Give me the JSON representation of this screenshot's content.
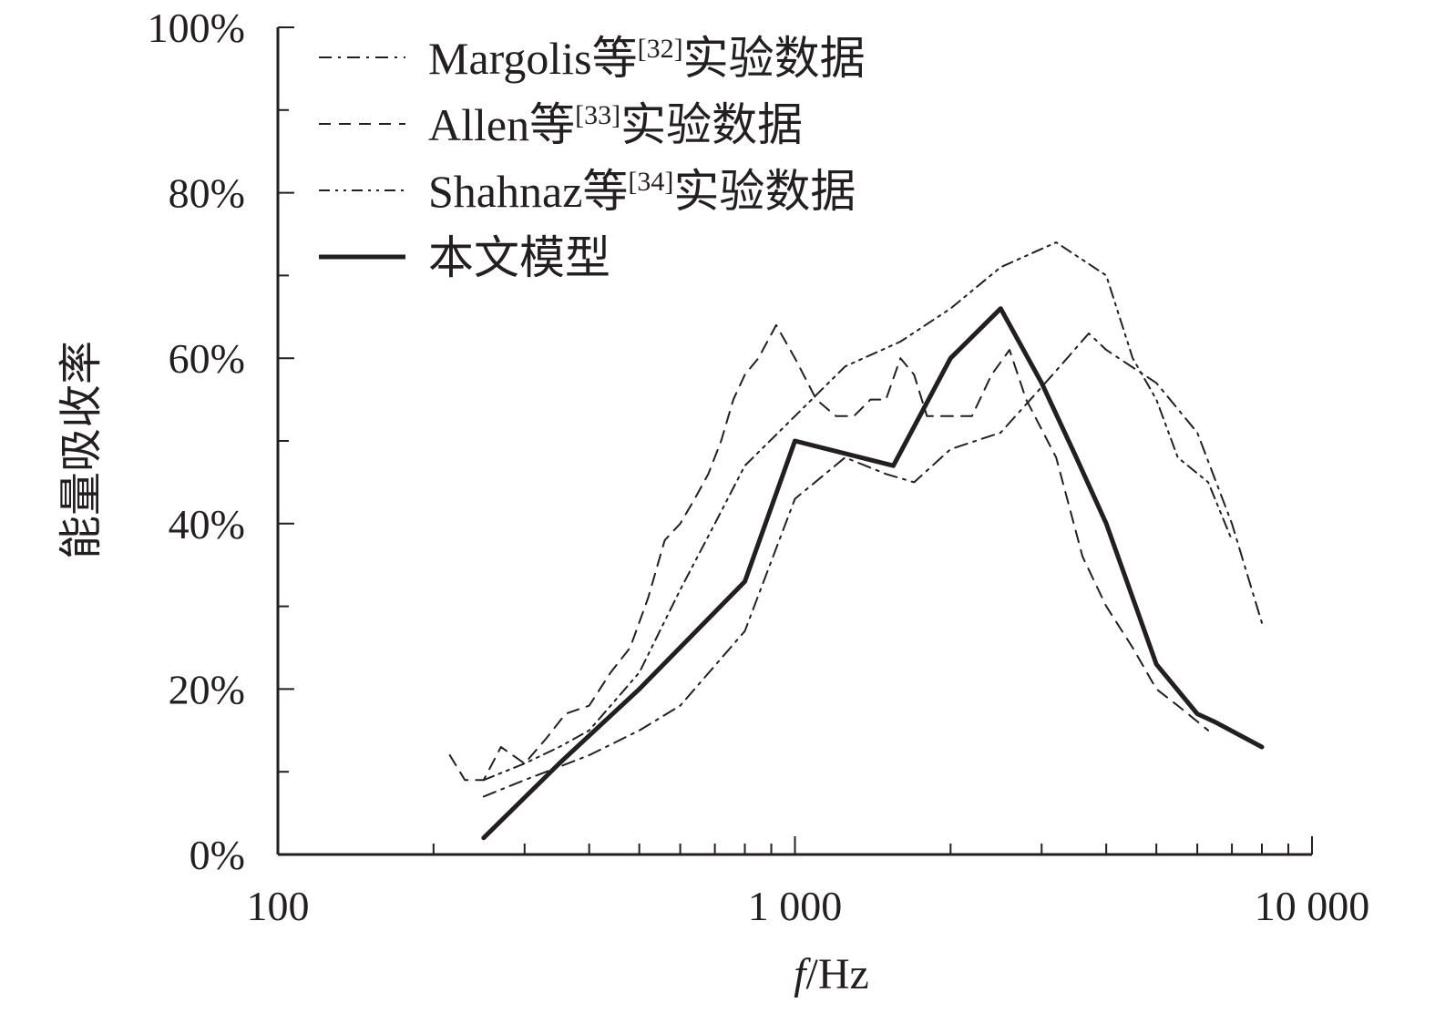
{
  "chart_data": {
    "type": "line",
    "xlabel": "f/Hz",
    "ylabel": "能量吸收率",
    "x_scale": "log",
    "xlim": [
      100,
      10000
    ],
    "ylim": [
      0,
      100
    ],
    "x_ticks": [
      {
        "value": 100,
        "label": "100"
      },
      {
        "value": 1000,
        "label": "1 000"
      },
      {
        "value": 10000,
        "label": "10 000"
      }
    ],
    "y_ticks": [
      {
        "value": 0,
        "label": "0%"
      },
      {
        "value": 20,
        "label": "20%"
      },
      {
        "value": 40,
        "label": "40%"
      },
      {
        "value": 60,
        "label": "60%"
      },
      {
        "value": 80,
        "label": "80%"
      },
      {
        "value": 100,
        "label": "100%"
      }
    ],
    "grid": false,
    "legend_position": "top-left",
    "series": [
      {
        "name": "Margolis等[32]实验数据",
        "name_main": "Margolis等",
        "name_sup": "[32]",
        "name_tail": "实验数据",
        "line_style": "dash-dot",
        "stroke_width": 2,
        "x": [
          250,
          300,
          400,
          500,
          600,
          800,
          1000,
          1250,
          1500,
          1700,
          2000,
          2500,
          3150,
          3700,
          4000,
          5000,
          6000,
          7000,
          8000
        ],
        "y": [
          7,
          9,
          12,
          15,
          18,
          27,
          43,
          48,
          46,
          45,
          49,
          51,
          58,
          63,
          61,
          57,
          51,
          40,
          28
        ]
      },
      {
        "name": "Allen等[33]实验数据",
        "name_main": "Allen等",
        "name_sup": "[33]",
        "name_tail": "实验数据",
        "line_style": "dashed",
        "stroke_width": 2,
        "x": [
          215,
          230,
          250,
          270,
          300,
          330,
          360,
          400,
          440,
          480,
          520,
          560,
          600,
          640,
          680,
          720,
          760,
          800,
          850,
          920,
          1000,
          1100,
          1200,
          1300,
          1400,
          1500,
          1600,
          1700,
          1800,
          2000,
          2200,
          2400,
          2600,
          2800,
          3200,
          3600,
          4000,
          4500,
          5000,
          5500,
          6300
        ],
        "y": [
          12,
          9,
          9,
          13,
          11,
          14,
          17,
          18,
          22,
          25,
          31,
          38,
          40,
          43,
          46,
          50,
          55,
          58,
          60,
          64,
          60,
          55,
          53,
          53,
          55,
          55,
          60,
          58,
          53,
          53,
          53,
          58,
          61,
          55,
          48,
          36,
          30,
          25,
          20,
          18,
          15
        ]
      },
      {
        "name": "Shahnaz等[34]实验数据",
        "name_main": "Shahnaz等",
        "name_sup": "[34]",
        "name_tail": "实验数据",
        "line_style": "dash-dot-dot",
        "stroke_width": 2,
        "x": [
          250,
          300,
          350,
          400,
          500,
          600,
          700,
          800,
          1000,
          1250,
          1600,
          2000,
          2500,
          3200,
          4000,
          4500,
          5000,
          5500,
          6300,
          7000
        ],
        "y": [
          9,
          11,
          13,
          15,
          22,
          32,
          40,
          47,
          53,
          59,
          62,
          66,
          71,
          74,
          70,
          60,
          55,
          48,
          45,
          38
        ]
      },
      {
        "name": "本文模型",
        "name_main": "本文模型",
        "name_sup": "",
        "name_tail": "",
        "line_style": "solid",
        "stroke_width": 5,
        "x": [
          250,
          350,
          500,
          800,
          1000,
          1550,
          2000,
          2500,
          3000,
          3500,
          4000,
          5000,
          6000,
          6500,
          8000
        ],
        "y": [
          2,
          11,
          20,
          33,
          50,
          47,
          60,
          66,
          57,
          48,
          40,
          23,
          17,
          16,
          13
        ]
      }
    ]
  }
}
